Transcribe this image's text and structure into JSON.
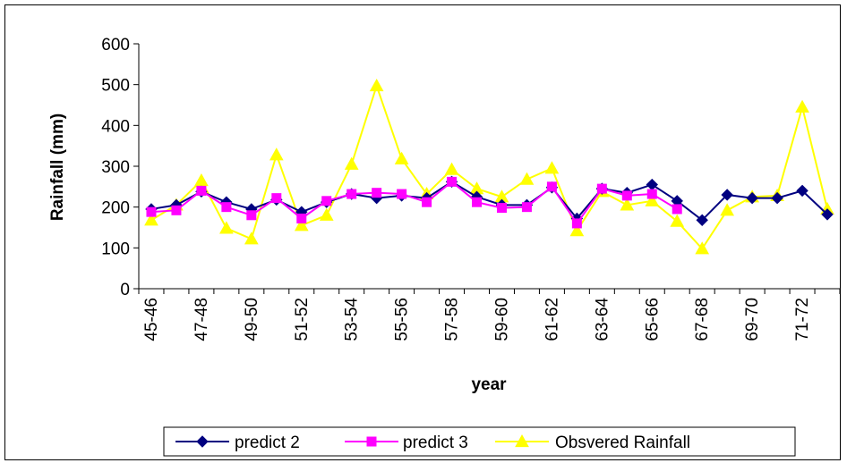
{
  "chart_data": {
    "type": "line",
    "title": "",
    "xlabel": "year",
    "ylabel": "Rainfall (mm)",
    "ylim": [
      0,
      600
    ],
    "yticks": [
      0,
      100,
      200,
      300,
      400,
      500,
      600
    ],
    "grid": false,
    "legend_position": "bottom",
    "categories": [
      "45-46",
      "46-47",
      "47-48",
      "48-49",
      "49-50",
      "50-51",
      "51-52",
      "52-53",
      "53-54",
      "54-55",
      "55-56",
      "56-57",
      "57-58",
      "58-59",
      "59-60",
      "60-61",
      "61-62",
      "62-63",
      "63-64",
      "64-65",
      "65-66",
      "66-67",
      "67-68",
      "68-69",
      "69-70",
      "70-71",
      "71-72",
      "72-73"
    ],
    "tick_labels": [
      "45-46",
      "47-48",
      "49-50",
      "51-52",
      "53-54",
      "55-56",
      "57-58",
      "59-60",
      "61-62",
      "63-64",
      "65-66",
      "67-68",
      "69-70",
      "71-72"
    ],
    "series": [
      {
        "name": "predict 2",
        "color": "#000080",
        "marker": "diamond",
        "values": [
          195,
          205,
          238,
          212,
          195,
          218,
          188,
          212,
          232,
          222,
          228,
          222,
          262,
          225,
          205,
          205,
          248,
          172,
          245,
          235,
          255,
          215,
          168,
          230,
          222,
          222,
          240,
          182
        ]
      },
      {
        "name": "predict 3",
        "color": "#ff00ff",
        "marker": "square",
        "values": [
          188,
          192,
          240,
          200,
          180,
          222,
          172,
          215,
          232,
          235,
          232,
          212,
          262,
          212,
          198,
          200,
          250,
          160,
          245,
          228,
          232,
          195,
          null,
          null,
          null,
          null,
          null,
          null
        ]
      },
      {
        "name": "Obsvered Rainfall",
        "color": "#ffff00",
        "marker": "triangle",
        "values": [
          168,
          205,
          265,
          148,
          122,
          328,
          155,
          180,
          305,
          497,
          318,
          232,
          292,
          245,
          225,
          268,
          295,
          142,
          238,
          205,
          215,
          165,
          98,
          192,
          225,
          228,
          445,
          195
        ]
      }
    ]
  }
}
